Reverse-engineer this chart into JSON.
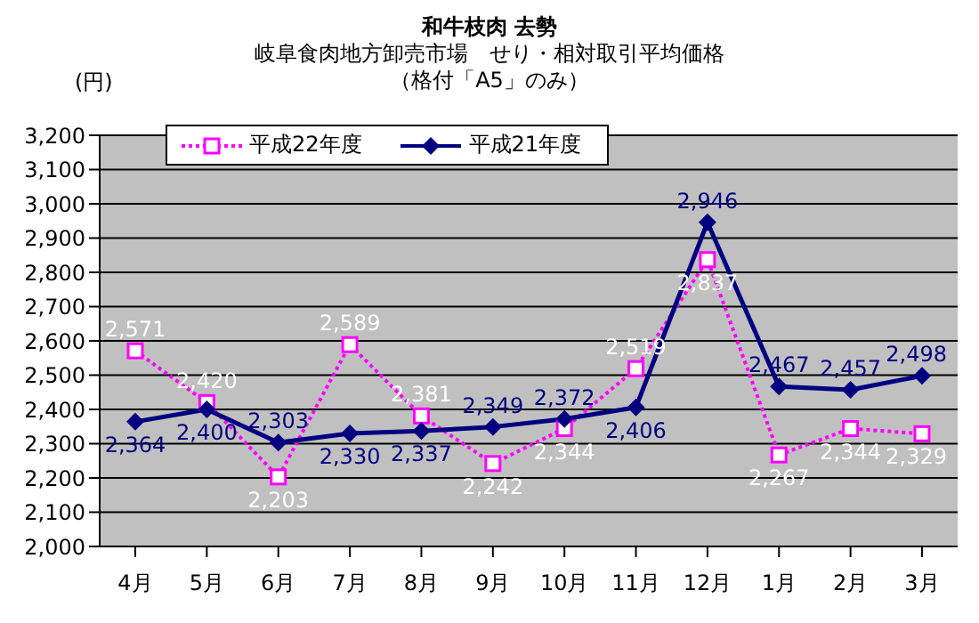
{
  "chart_data": {
    "type": "line",
    "title": "和牛枝肉 去勢",
    "subtitle": "岐阜食肉地方卸売市場　せり・相対取引平均価格",
    "annotations": [
      "（格付「A5」のみ）"
    ],
    "ylabel": "(円)",
    "categories": [
      "4月",
      "5月",
      "6月",
      "7月",
      "8月",
      "9月",
      "10月",
      "11月",
      "12月",
      "1月",
      "2月",
      "3月"
    ],
    "series": [
      {
        "name": "平成22年度",
        "color": "#ff00ff",
        "marker": "square",
        "line_style": "dotted",
        "values": [
          2571,
          2420,
          2203,
          2589,
          2381,
          2242,
          2344,
          2519,
          2837,
          2267,
          2344,
          2329
        ],
        "value_labels": [
          "2,571",
          "2,420",
          "2,203",
          "2,589",
          "2,381",
          "2,242",
          "2,344",
          "2,519",
          "2,837",
          "2,267",
          "2,344",
          "2,329"
        ]
      },
      {
        "name": "平成21年度",
        "color": "#000080",
        "marker": "diamond",
        "line_style": "solid",
        "values": [
          2364,
          2400,
          2303,
          2330,
          2337,
          2349,
          2372,
          2406,
          2946,
          2467,
          2457,
          2498
        ],
        "value_labels": [
          "2,364",
          "2,400",
          "2,303",
          "2,330",
          "2,337",
          "2,349",
          "2,372",
          "2,406",
          "2,946",
          "2,467",
          "2,457",
          "2,498"
        ]
      }
    ],
    "ylim": [
      2000,
      3200
    ],
    "yticks": [
      {
        "value": 2000,
        "label": "2,000"
      },
      {
        "value": 2100,
        "label": "2,100"
      },
      {
        "value": 2200,
        "label": "2,200"
      },
      {
        "value": 2300,
        "label": "2,300"
      },
      {
        "value": 2400,
        "label": "2,400"
      },
      {
        "value": 2500,
        "label": "2,500"
      },
      {
        "value": 2600,
        "label": "2,600"
      },
      {
        "value": 2700,
        "label": "2,700"
      },
      {
        "value": 2800,
        "label": "2,800"
      },
      {
        "value": 2900,
        "label": "2,900"
      },
      {
        "value": 3000,
        "label": "3,000"
      },
      {
        "value": 3100,
        "label": "3,100"
      },
      {
        "value": 3200,
        "label": "3,200"
      }
    ],
    "grid": "y",
    "legend": "top left"
  }
}
